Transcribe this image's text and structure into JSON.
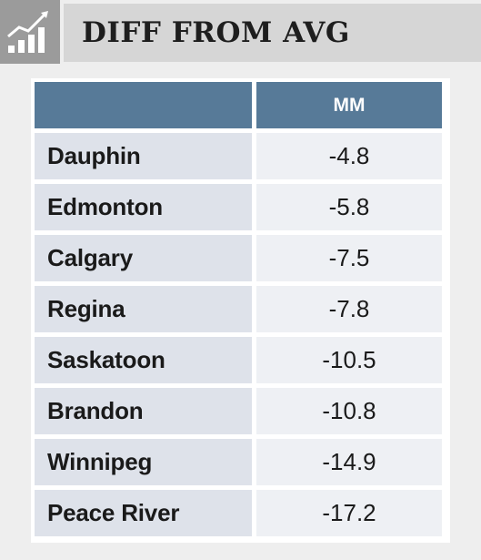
{
  "header": {
    "icon": "bar-chart-trend-icon",
    "title": "DIFF FROM AVG"
  },
  "table": {
    "header_blank": "",
    "column_header": "MM"
  },
  "colors": {
    "header_fill": "#577a98",
    "city_cell": "#dee2ea",
    "value_cell": "#eef0f4"
  },
  "chart_data": {
    "type": "table",
    "title": "DIFF FROM AVG",
    "columns": [
      "",
      "MM"
    ],
    "rows": [
      {
        "city": "Dauphin",
        "value": "-4.8"
      },
      {
        "city": "Edmonton",
        "value": "-5.8"
      },
      {
        "city": "Calgary",
        "value": "-7.5"
      },
      {
        "city": "Regina",
        "value": "-7.8"
      },
      {
        "city": "Saskatoon",
        "value": "-10.5"
      },
      {
        "city": "Brandon",
        "value": "-10.8"
      },
      {
        "city": "Winnipeg",
        "value": "-14.9"
      },
      {
        "city": "Peace River",
        "value": "-17.2"
      }
    ]
  }
}
